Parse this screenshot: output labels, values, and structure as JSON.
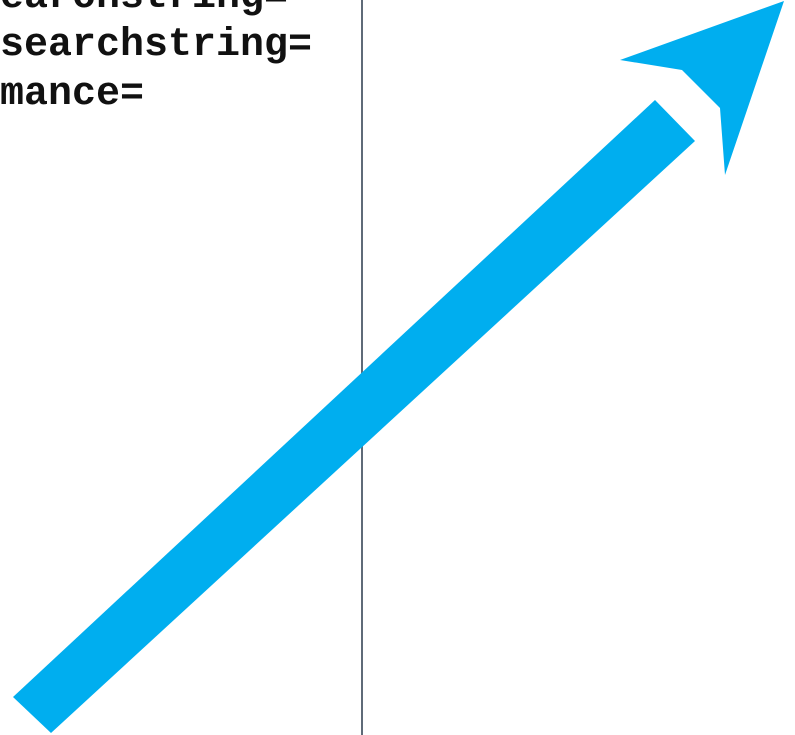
{
  "code_lines": [
    "earchstring=",
    "searchstring=",
    "mance="
  ],
  "annotation": {
    "icon": "arrow-up-right-icon",
    "color": "#00aeef"
  },
  "divider_color": "#5f6b78"
}
